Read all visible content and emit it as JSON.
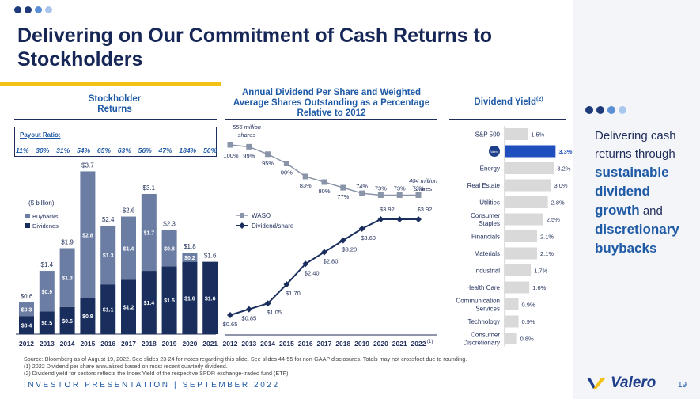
{
  "header": {
    "title": "Delivering on Our Commitment of Cash Returns to Stockholders",
    "dot_colors": [
      "#1f3a7a",
      "#1f3a7a",
      "#5a8fd6",
      "#a9c7ee"
    ]
  },
  "left": {
    "heading": "Stockholder Returns",
    "payout_label": "Payout Ratio:",
    "payout_values": [
      "11%",
      "30%",
      "31%",
      "54%",
      "65%",
      "63%",
      "56%",
      "47%",
      "184%",
      "50%"
    ],
    "unit_label": "($ billion)",
    "legend": [
      "Buybacks",
      "Dividends"
    ]
  },
  "middle": {
    "heading": "Annual Dividend Per Share and Weighted Average Shares Outstanding as a Percentage Relative to 2012",
    "top_annotation": "556 million shares",
    "right_annotation": "404 million shares",
    "legend": [
      "WASO",
      "Dividend/share"
    ],
    "last_year_footnote": "(1)"
  },
  "right": {
    "heading": "Dividend Yield",
    "heading_sup": "(2)"
  },
  "side": {
    "text_parts": [
      "Delivering cash returns through",
      "sustainable dividend growth",
      "and",
      "discretionary buybacks"
    ]
  },
  "footnotes": [
    "Source: Bloomberg as of August 19, 2022. See slides 23-24 for notes regarding this slide. See slides 44-55 for non-GAAP disclosures. Totals may not crossfoot due to rounding.",
    "(1) 2022 Dividend per share annualized based on most recent quarterly dividend.",
    "(2) Dividend yield for sectors reflects the Index Yield of the respective SPDR exchange-traded fund (ETF)."
  ],
  "footer": {
    "text": "INVESTOR PRESENTATION | SEPTEMBER 2022",
    "logo_text": "Valero",
    "page_number": "19"
  },
  "chart_data": [
    {
      "type": "bar",
      "stacked": true,
      "categories": [
        "2012",
        "2013",
        "2014",
        "2015",
        "2016",
        "2017",
        "2018",
        "2019",
        "2020",
        "2021"
      ],
      "series": [
        {
          "name": "Dividends",
          "values": [
            0.4,
            0.5,
            0.6,
            0.8,
            1.1,
            1.2,
            1.4,
            1.5,
            1.6,
            1.6
          ],
          "labels": [
            "$0.4",
            "$0.5",
            "$0.6",
            "$0.8",
            "$1.1",
            "$1.2",
            "$1.4",
            "$1.5",
            "$1.6",
            "$1.6"
          ],
          "color": "#1a2e5e"
        },
        {
          "name": "Buybacks",
          "values": [
            0.3,
            0.9,
            1.3,
            2.8,
            1.3,
            1.4,
            1.7,
            0.8,
            0.2,
            0
          ],
          "labels": [
            "$0.3",
            "$0.9",
            "$1.3",
            "$2.8",
            "$1.3",
            "$1.4",
            "$1.7",
            "$0.8",
            "$0.2",
            ""
          ],
          "color": "#6b7da3"
        }
      ],
      "totals": [
        "$0.6",
        "$1.4",
        "$1.9",
        "$3.7",
        "$2.4",
        "$2.6",
        "$3.1",
        "$2.3",
        "$1.8",
        "$1.6"
      ],
      "ylim": [
        0,
        3.8
      ]
    },
    {
      "type": "line",
      "x": [
        "2012",
        "2013",
        "2014",
        "2015",
        "2016",
        "2017",
        "2018",
        "2019",
        "2020",
        "2021",
        "2022"
      ],
      "series": [
        {
          "name": "WASO",
          "values": [
            100,
            99,
            95,
            90,
            83,
            80,
            77,
            74,
            73,
            73,
            73
          ],
          "labels": [
            "100%",
            "99%",
            "95%",
            "90%",
            "83%",
            "80%",
            "77%",
            "74%",
            "73%",
            "73%",
            "73%"
          ],
          "color": "#8a94a8"
        },
        {
          "name": "Dividend/share",
          "values": [
            0.65,
            0.85,
            1.05,
            1.7,
            2.4,
            2.8,
            3.2,
            3.6,
            3.92,
            3.92,
            3.92
          ],
          "labels": [
            "$0.65",
            "$0.85",
            "$1.05",
            "$1.70",
            "$2.40",
            "$2.80",
            "$3.20",
            "$3.60",
            "$3.92",
            "",
            "$3.92"
          ],
          "color": "#1a2e5e"
        }
      ]
    },
    {
      "type": "bar",
      "orientation": "horizontal",
      "categories": [
        "S&P 500",
        "Valero",
        "Energy",
        "Real Estate",
        "Utilities",
        "Consumer Staples",
        "Financials",
        "Materials",
        "Industrial",
        "Health Care",
        "Communication Services",
        "Technology",
        "Consumer Discretionary"
      ],
      "values": [
        1.5,
        3.3,
        3.2,
        3.0,
        2.8,
        2.5,
        2.1,
        2.1,
        1.7,
        1.6,
        0.9,
        0.9,
        0.8
      ],
      "labels": [
        "1.5%",
        "3.3%",
        "3.2%",
        "3.0%",
        "2.8%",
        "2.5%",
        "2.1%",
        "2.1%",
        "1.7%",
        "1.6%",
        "0.9%",
        "0.9%",
        "0.8%"
      ],
      "highlight_index": 1,
      "colors": {
        "default": "#d9d9d9",
        "highlight": "#1f4fbf"
      }
    }
  ]
}
